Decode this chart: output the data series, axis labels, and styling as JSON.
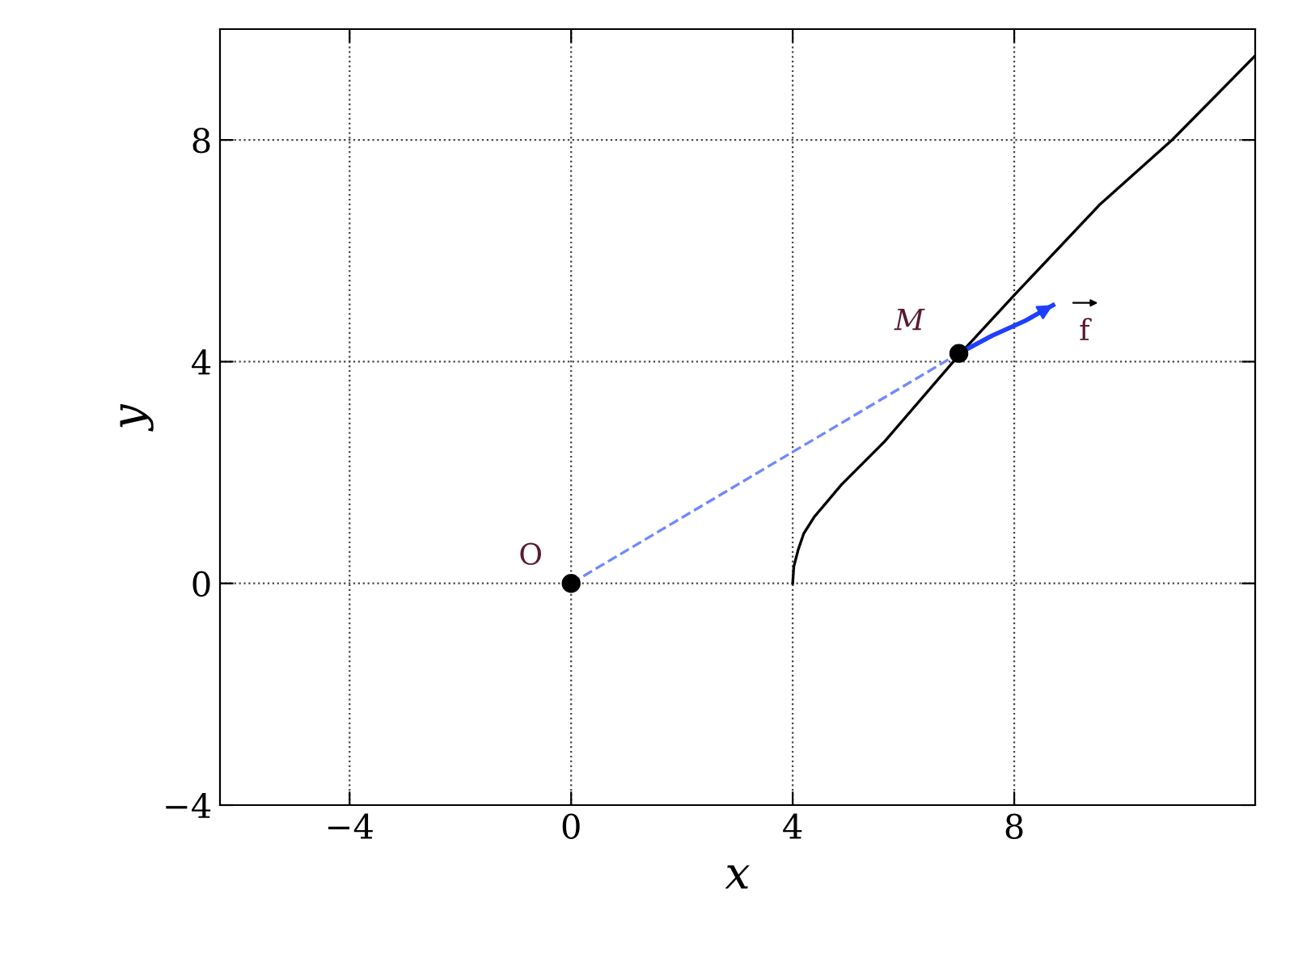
{
  "chart_data": {
    "type": "line",
    "xlabel": "x",
    "ylabel": "y",
    "xlim": [
      -6.34,
      12.35
    ],
    "ylim": [
      -4,
      10
    ],
    "xticks": [
      {
        "value": -4,
        "label": "−4"
      },
      0,
      4,
      8
    ],
    "yticks": [
      {
        "value": -4,
        "label": "−4"
      },
      0,
      4,
      8
    ],
    "grid": true,
    "series": [
      {
        "color": "#000000",
        "line_style": "solid",
        "marker": "none",
        "x": [
          4.0,
          4.02,
          4.1,
          4.2,
          4.39,
          4.88,
          5.66,
          7.02,
          7.99,
          9.55,
          10.86,
          12.35
        ],
        "values": [
          0,
          0.3,
          0.61,
          0.9,
          1.2,
          1.78,
          2.56,
          4.14,
          5.19,
          6.84,
          8.01,
          9.52
        ]
      },
      {
        "color": "#7088ff",
        "line_style": "dashed",
        "marker": "none",
        "x": [
          0,
          7.0
        ],
        "values": [
          0,
          4.15
        ]
      },
      {
        "color": "#1f3fff",
        "line_style": "solid",
        "marker": "none",
        "x": [
          7.0,
          7.6,
          8.2,
          8.7
        ],
        "values": [
          4.15,
          4.47,
          4.74,
          5.02
        ]
      },
      {
        "type": "scatter",
        "color": "#000000",
        "marker": "circle",
        "x": [
          0,
          7.0
        ],
        "values": [
          0,
          4.15
        ]
      }
    ],
    "annotations": [
      {
        "text": "O",
        "x": 0,
        "y": 0
      },
      {
        "text": "M",
        "x": 7.0,
        "y": 4.15
      },
      "f"
    ]
  }
}
